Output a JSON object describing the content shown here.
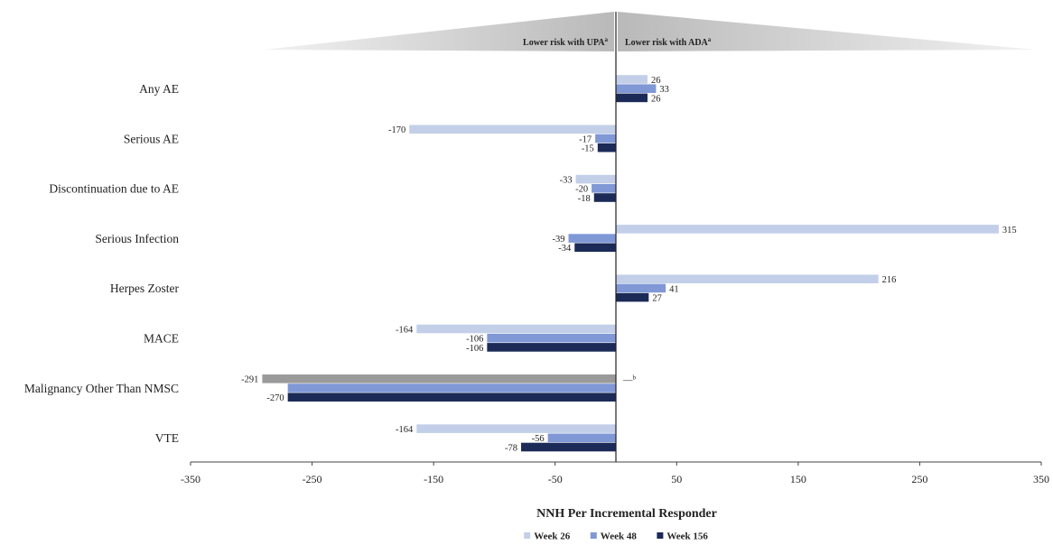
{
  "chart_data": {
    "type": "bar",
    "orientation": "horizontal",
    "categories": [
      "Any AE",
      "Serious AE",
      "Discontinuation due to AE",
      "Serious Infection",
      "Herpes Zoster",
      "MACE",
      "Malignancy Other Than NMSC",
      "VTE"
    ],
    "series": [
      {
        "name": "Week 26",
        "color": "#c3cfe9",
        "values": [
          26,
          -170,
          -33,
          315,
          216,
          -164,
          -291,
          -164
        ]
      },
      {
        "name": "Week 48",
        "color": "#8098d6",
        "values": [
          33,
          -17,
          -20,
          -39,
          41,
          -106,
          -270,
          -56
        ]
      },
      {
        "name": "Week 156",
        "color": "#1b2a57",
        "values": [
          26,
          -15,
          -18,
          -34,
          27,
          -106,
          -270,
          -78
        ]
      }
    ],
    "value_labels": [
      [
        "26",
        "33",
        "26"
      ],
      [
        "-170",
        "-17",
        "-15"
      ],
      [
        "-33",
        "-20",
        "-18"
      ],
      [
        "315",
        "-39",
        "-34"
      ],
      [
        "216",
        "41",
        "27"
      ],
      [
        "-164",
        "-106",
        "-106"
      ],
      [
        "-291",
        "",
        "-270"
      ],
      [
        "-164",
        "-56",
        "-78"
      ]
    ],
    "special_bars": [
      {
        "category_index": 6,
        "series_index": 0,
        "color": "#9a9a9a"
      }
    ],
    "annotations": [
      {
        "category_index": 6,
        "side": "positive",
        "text": "—",
        "superscript": "b"
      }
    ],
    "xlim": [
      -350,
      350
    ],
    "xticks": [
      -350,
      -250,
      -150,
      -50,
      50,
      150,
      250,
      350
    ],
    "xlabel": "NNH Per Incremental Responder",
    "risk_left": {
      "text": "Lower risk with UPA",
      "superscript": "a"
    },
    "risk_right": {
      "text": "Lower risk with ADA",
      "superscript": "a"
    },
    "legend_position": "bottom-center",
    "grid": false
  }
}
